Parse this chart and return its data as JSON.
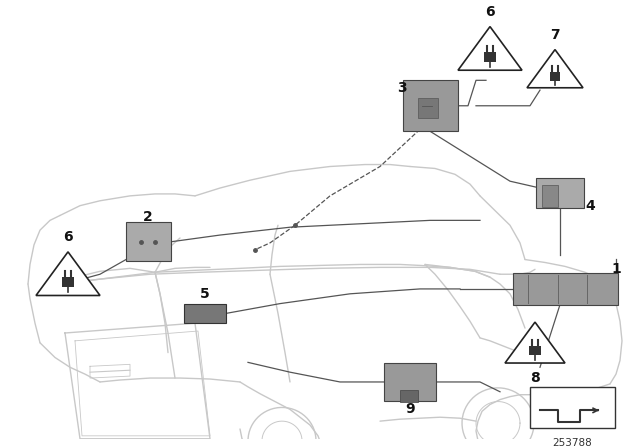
{
  "bg_color": "#ffffff",
  "fig_width": 6.4,
  "fig_height": 4.48,
  "dpi": 100,
  "diagram_number": "253788",
  "car_color": "#c8c8c8",
  "label_color": "#111111",
  "label_fontsize": 9,
  "comp_color_dark": "#888888",
  "comp_color_mid": "#aaaaaa",
  "comp_color_light": "#bbbbbb",
  "comp_edge": "#444444",
  "line_color": "#555555",
  "dash_color": "#555555"
}
